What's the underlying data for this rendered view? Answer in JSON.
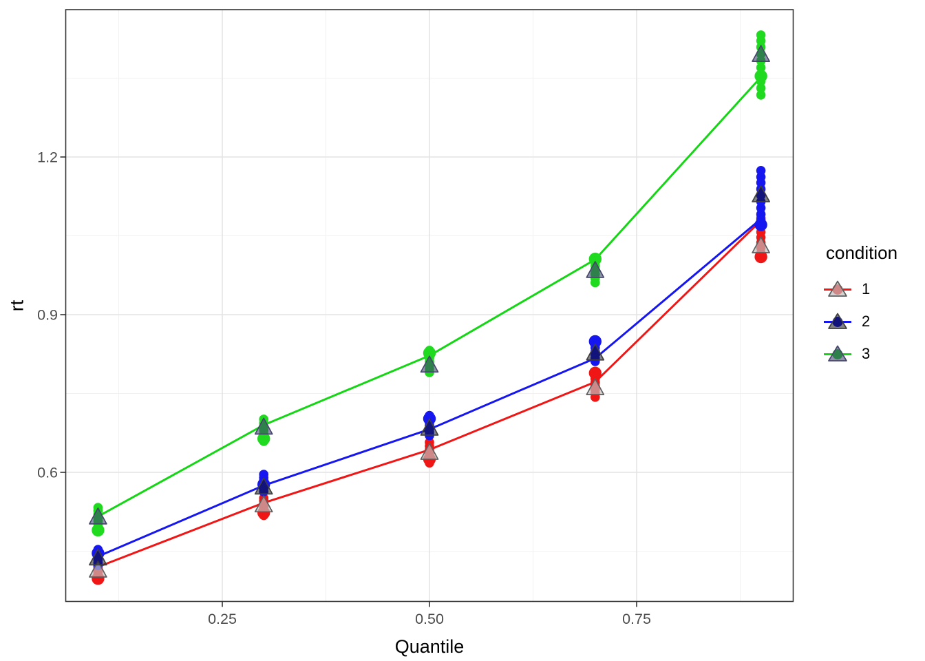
{
  "figure": {
    "background": "#ffffff"
  },
  "colors": {
    "panel_background": "#ffffff",
    "panel_border": "#333333",
    "grid_major": "#e4e4e4",
    "grid_minor": "#f1f1f1",
    "tick": "#333333",
    "tick_label": "#4d4d4d",
    "axis_title": "#000000"
  },
  "legend": {
    "title": "condition",
    "items": [
      {
        "label": "1"
      },
      {
        "label": "2"
      },
      {
        "label": "3"
      }
    ]
  },
  "chart_data": {
    "type": "scatter",
    "subtype": "quantile-plot with lines, subject points and mean triangles",
    "title": "",
    "xlabel": "Quantile",
    "ylabel": "rt",
    "x_ticks": [
      0.25,
      0.5,
      0.75
    ],
    "x_tick_labels": [
      "0.25",
      "0.50",
      "0.75"
    ],
    "y_ticks": [
      0.6,
      0.9,
      1.2
    ],
    "y_tick_labels": [
      "0.6",
      "0.9",
      "1.2"
    ],
    "x_minor_ticks": [
      0.125,
      0.375,
      0.625,
      0.875
    ],
    "y_minor_ticks": [
      0.45,
      0.75,
      1.05,
      1.35
    ],
    "xlim": [
      0.061,
      0.939
    ],
    "ylim": [
      0.352,
      1.48
    ],
    "grid": "major+minor",
    "legend_title": "condition",
    "legend_position": "right",
    "x": [
      0.1,
      0.3,
      0.5,
      0.7,
      0.9
    ],
    "series": [
      {
        "name": "1",
        "line_color": "#f01616",
        "dot_color": "#f01616",
        "triangle_fill": "rgba(190,190,190,0.68)",
        "triangle_stroke": "#5e5e5e",
        "line_values": [
          0.42,
          0.542,
          0.643,
          0.772,
          1.079
        ],
        "mean_values": [
          0.414,
          0.538,
          0.638,
          0.761,
          1.031
        ],
        "big_point_values": [
          0.398,
          0.523,
          0.625,
          0.789,
          1.01
        ],
        "point_values": [
          [
            0.398,
            0.404,
            0.409,
            0.413,
            0.418,
            0.422,
            0.427
          ],
          [
            0.518,
            0.524,
            0.53,
            0.535,
            0.54,
            0.546,
            0.551
          ],
          [
            0.618,
            0.625,
            0.631,
            0.637,
            0.643,
            0.65,
            0.657
          ],
          [
            0.743,
            0.75,
            0.757,
            0.764,
            0.771,
            0.778,
            0.785,
            0.791
          ],
          [
            1.007,
            1.017,
            1.027,
            1.037,
            1.047,
            1.057,
            1.067,
            1.077,
            1.084
          ]
        ]
      },
      {
        "name": "2",
        "line_color": "#1616f0",
        "dot_color": "#1616f0",
        "triangle_fill": "rgba(18,18,18,0.52)",
        "triangle_stroke": "#3f3f3f",
        "line_values": [
          0.44,
          0.575,
          0.682,
          0.817,
          1.082
        ],
        "mean_values": [
          0.437,
          0.572,
          0.684,
          0.827,
          1.128
        ],
        "big_point_values": [
          0.446,
          0.577,
          0.702,
          0.849,
          1.071
        ],
        "point_values": [
          [
            0.423,
            0.428,
            0.433,
            0.438,
            0.443,
            0.448,
            0.453
          ],
          [
            0.563,
            0.568,
            0.574,
            0.579,
            0.585,
            0.59,
            0.596
          ],
          [
            0.67,
            0.676,
            0.682,
            0.689,
            0.695,
            0.702,
            0.708
          ],
          [
            0.811,
            0.817,
            0.824,
            0.83,
            0.837,
            0.843,
            0.85
          ],
          [
            1.068,
            1.08,
            1.091,
            1.103,
            1.115,
            1.127,
            1.139,
            1.151,
            1.162,
            1.174
          ]
        ]
      },
      {
        "name": "3",
        "line_color": "#15d615",
        "dot_color": "#20da20",
        "triangle_fill": "rgba(58,58,110,0.56)",
        "triangle_stroke": "#46466b",
        "line_values": [
          0.516,
          0.69,
          0.822,
          1.005,
          1.352
        ],
        "mean_values": [
          0.515,
          0.686,
          0.804,
          0.984,
          1.395
        ],
        "big_point_values": [
          0.49,
          0.664,
          0.827,
          1.006,
          1.354
        ],
        "point_values": [
          [
            0.489,
            0.495,
            0.502,
            0.508,
            0.514,
            0.52,
            0.527,
            0.533
          ],
          [
            0.659,
            0.666,
            0.673,
            0.68,
            0.687,
            0.694,
            0.701
          ],
          [
            0.79,
            0.797,
            0.804,
            0.811,
            0.818,
            0.825,
            0.832
          ],
          [
            0.961,
            0.969,
            0.977,
            0.985,
            0.993,
            1.001,
            1.009
          ],
          [
            1.318,
            1.331,
            1.344,
            1.357,
            1.37,
            1.383,
            1.396,
            1.409,
            1.421,
            1.432
          ]
        ]
      }
    ]
  }
}
